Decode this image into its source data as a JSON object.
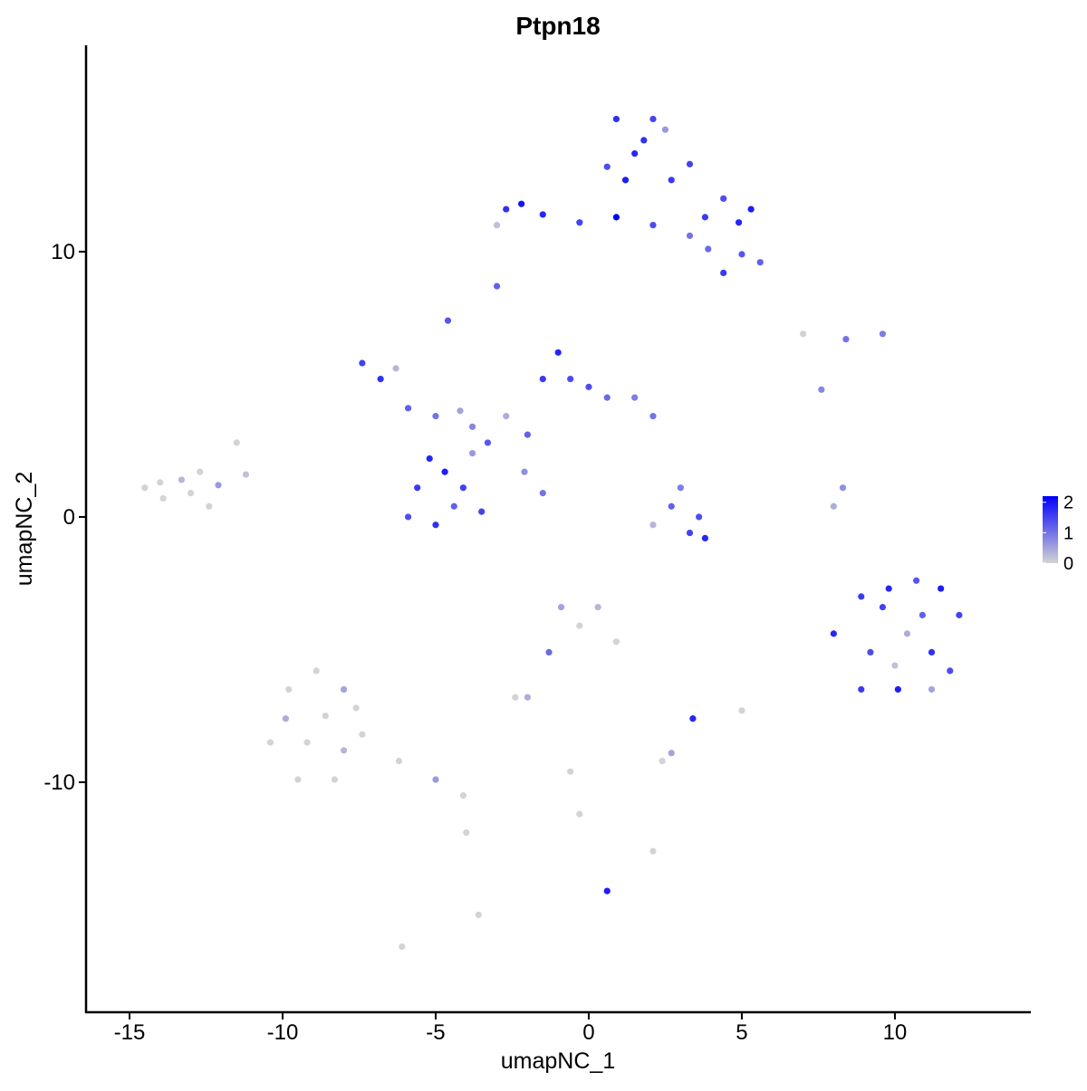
{
  "chart_data": {
    "type": "scatter",
    "title": "Ptpn18",
    "x_label": "umapNC_1",
    "y_label": "umapNC_2",
    "xlim": [
      -16.42,
      14.44
    ],
    "ylim": [
      -18.67,
      17.78
    ],
    "xticks": [
      -15,
      -10,
      -5,
      0,
      5,
      10
    ],
    "yticks": [
      -10,
      0,
      10
    ],
    "low_color": "#d3d3d3",
    "high_color": "#0000ff",
    "clim": [
      0,
      2.2
    ],
    "cticks": [
      0,
      1,
      2
    ],
    "x": [
      0.9,
      2.1,
      1.5,
      2.7,
      4.4,
      5.3,
      5.0,
      4.4,
      5.6,
      0.9,
      -0.3,
      -2.7,
      -1.5,
      2.1,
      3.3,
      3.8,
      1.2,
      3.3,
      -3.0,
      1.8,
      2.5,
      0.6,
      4.9,
      3.9,
      -2.2,
      -7.4,
      -6.8,
      -5.9,
      -5.0,
      -3.8,
      -3.3,
      -2.7,
      -1.5,
      -1.0,
      -0.6,
      0.6,
      1.5,
      2.1,
      -5.6,
      -5.9,
      -5.0,
      -4.7,
      -4.1,
      -3.8,
      -4.4,
      -4.6,
      -2.1,
      -1.5,
      -6.3,
      -4.2,
      -2.0,
      0.0,
      -5.2,
      -3.5,
      -14.5,
      -13.9,
      -13.3,
      -12.7,
      -12.1,
      -11.5,
      -12.4,
      -11.2,
      -13.0,
      -14.0,
      2.7,
      3.3,
      3.8,
      3.0,
      2.1,
      3.6,
      8.9,
      9.8,
      10.7,
      11.5,
      12.1,
      9.2,
      10.4,
      11.2,
      8.9,
      10.1,
      11.2,
      8.0,
      10.9,
      9.6,
      11.8,
      10.0,
      -9.8,
      -8.9,
      -8.0,
      -10.4,
      -9.2,
      -8.0,
      -9.5,
      -8.3,
      -7.4,
      -6.2,
      -5.0,
      -4.1,
      -8.6,
      -9.9,
      -7.6,
      -0.9,
      -0.3,
      0.3,
      0.9,
      -1.3,
      -2.4,
      2.4,
      2.7,
      -0.3,
      2.1,
      -3.6,
      -6.1,
      5.0,
      3.4,
      0.6,
      -4.0,
      -0.6,
      -2.0,
      8.0,
      8.3,
      7.6,
      9.6,
      8.4,
      7.0,
      -3.0
    ],
    "y": [
      15.0,
      15.0,
      13.7,
      12.7,
      12.0,
      11.6,
      9.9,
      9.2,
      9.6,
      11.3,
      11.1,
      11.6,
      11.4,
      11.0,
      10.6,
      11.3,
      12.7,
      13.3,
      11.0,
      14.2,
      14.6,
      13.2,
      11.1,
      10.1,
      11.8,
      5.8,
      5.2,
      4.1,
      3.8,
      3.4,
      2.8,
      3.8,
      5.2,
      6.2,
      5.2,
      4.5,
      4.5,
      3.8,
      1.1,
      0.0,
      -0.3,
      1.7,
      1.1,
      2.4,
      0.4,
      7.4,
      1.7,
      0.9,
      5.6,
      4.0,
      3.1,
      4.9,
      2.2,
      0.2,
      1.1,
      0.7,
      1.4,
      1.7,
      1.2,
      2.8,
      0.4,
      1.6,
      0.9,
      1.3,
      0.4,
      -0.6,
      -0.8,
      1.1,
      -0.3,
      0.0,
      -3.0,
      -2.7,
      -2.4,
      -2.7,
      -3.7,
      -5.1,
      -4.4,
      -5.1,
      -6.5,
      -6.5,
      -6.5,
      -4.4,
      -3.7,
      -3.4,
      -5.8,
      -5.6,
      -6.5,
      -5.8,
      -6.5,
      -8.5,
      -8.5,
      -8.8,
      -9.9,
      -9.9,
      -8.2,
      -9.2,
      -9.9,
      -10.5,
      -7.5,
      -7.6,
      -7.2,
      -3.4,
      -4.1,
      -3.4,
      -4.7,
      -5.1,
      -6.8,
      -9.2,
      -8.9,
      -11.2,
      -12.6,
      -15.0,
      -16.2,
      -7.3,
      -7.6,
      -14.1,
      -11.9,
      -9.6,
      -6.8,
      0.4,
      1.1,
      4.8,
      6.9,
      6.7,
      6.9,
      8.7
    ],
    "values": [
      1.7,
      1.5,
      1.8,
      1.6,
      1.4,
      1.9,
      1.3,
      1.6,
      1.2,
      2.2,
      1.5,
      1.7,
      1.8,
      1.4,
      1.0,
      1.6,
      1.9,
      1.5,
      0.2,
      1.7,
      0.6,
      1.4,
      1.8,
      1.1,
      2.0,
      1.5,
      1.7,
      1.2,
      1.0,
      0.8,
      1.3,
      0.4,
      1.6,
      1.8,
      1.4,
      1.1,
      0.9,
      1.0,
      1.6,
      1.4,
      1.7,
      1.9,
      1.5,
      0.6,
      1.2,
      1.3,
      0.7,
      1.0,
      0.3,
      0.5,
      1.2,
      1.4,
      1.8,
      1.5,
      0.0,
      0.0,
      0.3,
      0.0,
      0.6,
      0.0,
      0.0,
      0.2,
      0.0,
      0.0,
      1.2,
      1.5,
      1.8,
      0.9,
      0.3,
      1.4,
      1.6,
      1.8,
      1.3,
      1.9,
      1.5,
      1.4,
      0.4,
      1.7,
      1.6,
      1.9,
      0.5,
      1.8,
      1.2,
      1.5,
      1.4,
      0.2,
      0.0,
      0.0,
      0.5,
      0.0,
      0.0,
      0.3,
      0.0,
      0.0,
      0.0,
      0.0,
      0.6,
      0.0,
      0.0,
      0.4,
      0.0,
      0.5,
      0.0,
      0.3,
      0.0,
      1.1,
      0.0,
      0.0,
      0.5,
      0.0,
      0.0,
      0.0,
      0.0,
      0.0,
      1.8,
      1.9,
      0.0,
      0.0,
      0.4,
      0.4,
      0.7,
      0.8,
      0.9,
      1.0,
      0.0,
      1.2
    ]
  }
}
